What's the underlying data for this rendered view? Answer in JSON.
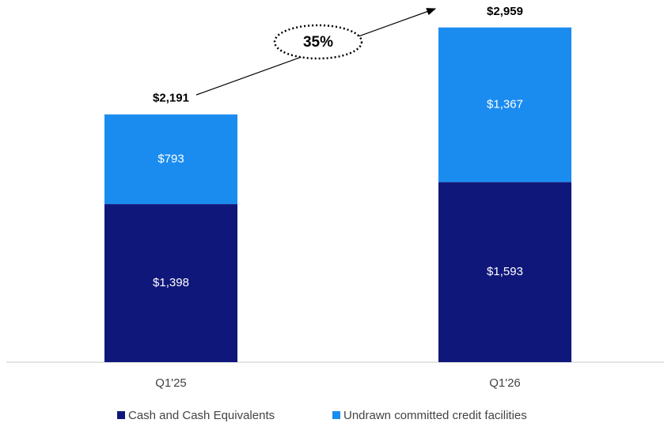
{
  "chart_data": {
    "type": "stacked_bar",
    "categories": [
      "Q1'25",
      "Q1'26"
    ],
    "series": [
      {
        "name": "Cash and Cash Equivalents",
        "color": "#10177a",
        "values": [
          1398,
          1593
        ],
        "value_labels": [
          "$1,398",
          "$1,593"
        ]
      },
      {
        "name": "Undrawn committed credit facilities",
        "color": "#1a8cf0",
        "values": [
          793,
          1367
        ],
        "value_labels": [
          "$793",
          "$1,367"
        ]
      }
    ],
    "totals": [
      2191,
      2959
    ],
    "total_labels": [
      "$2,191",
      "$2,959"
    ],
    "annotation": "35%",
    "ylim": [
      0,
      3000
    ]
  }
}
